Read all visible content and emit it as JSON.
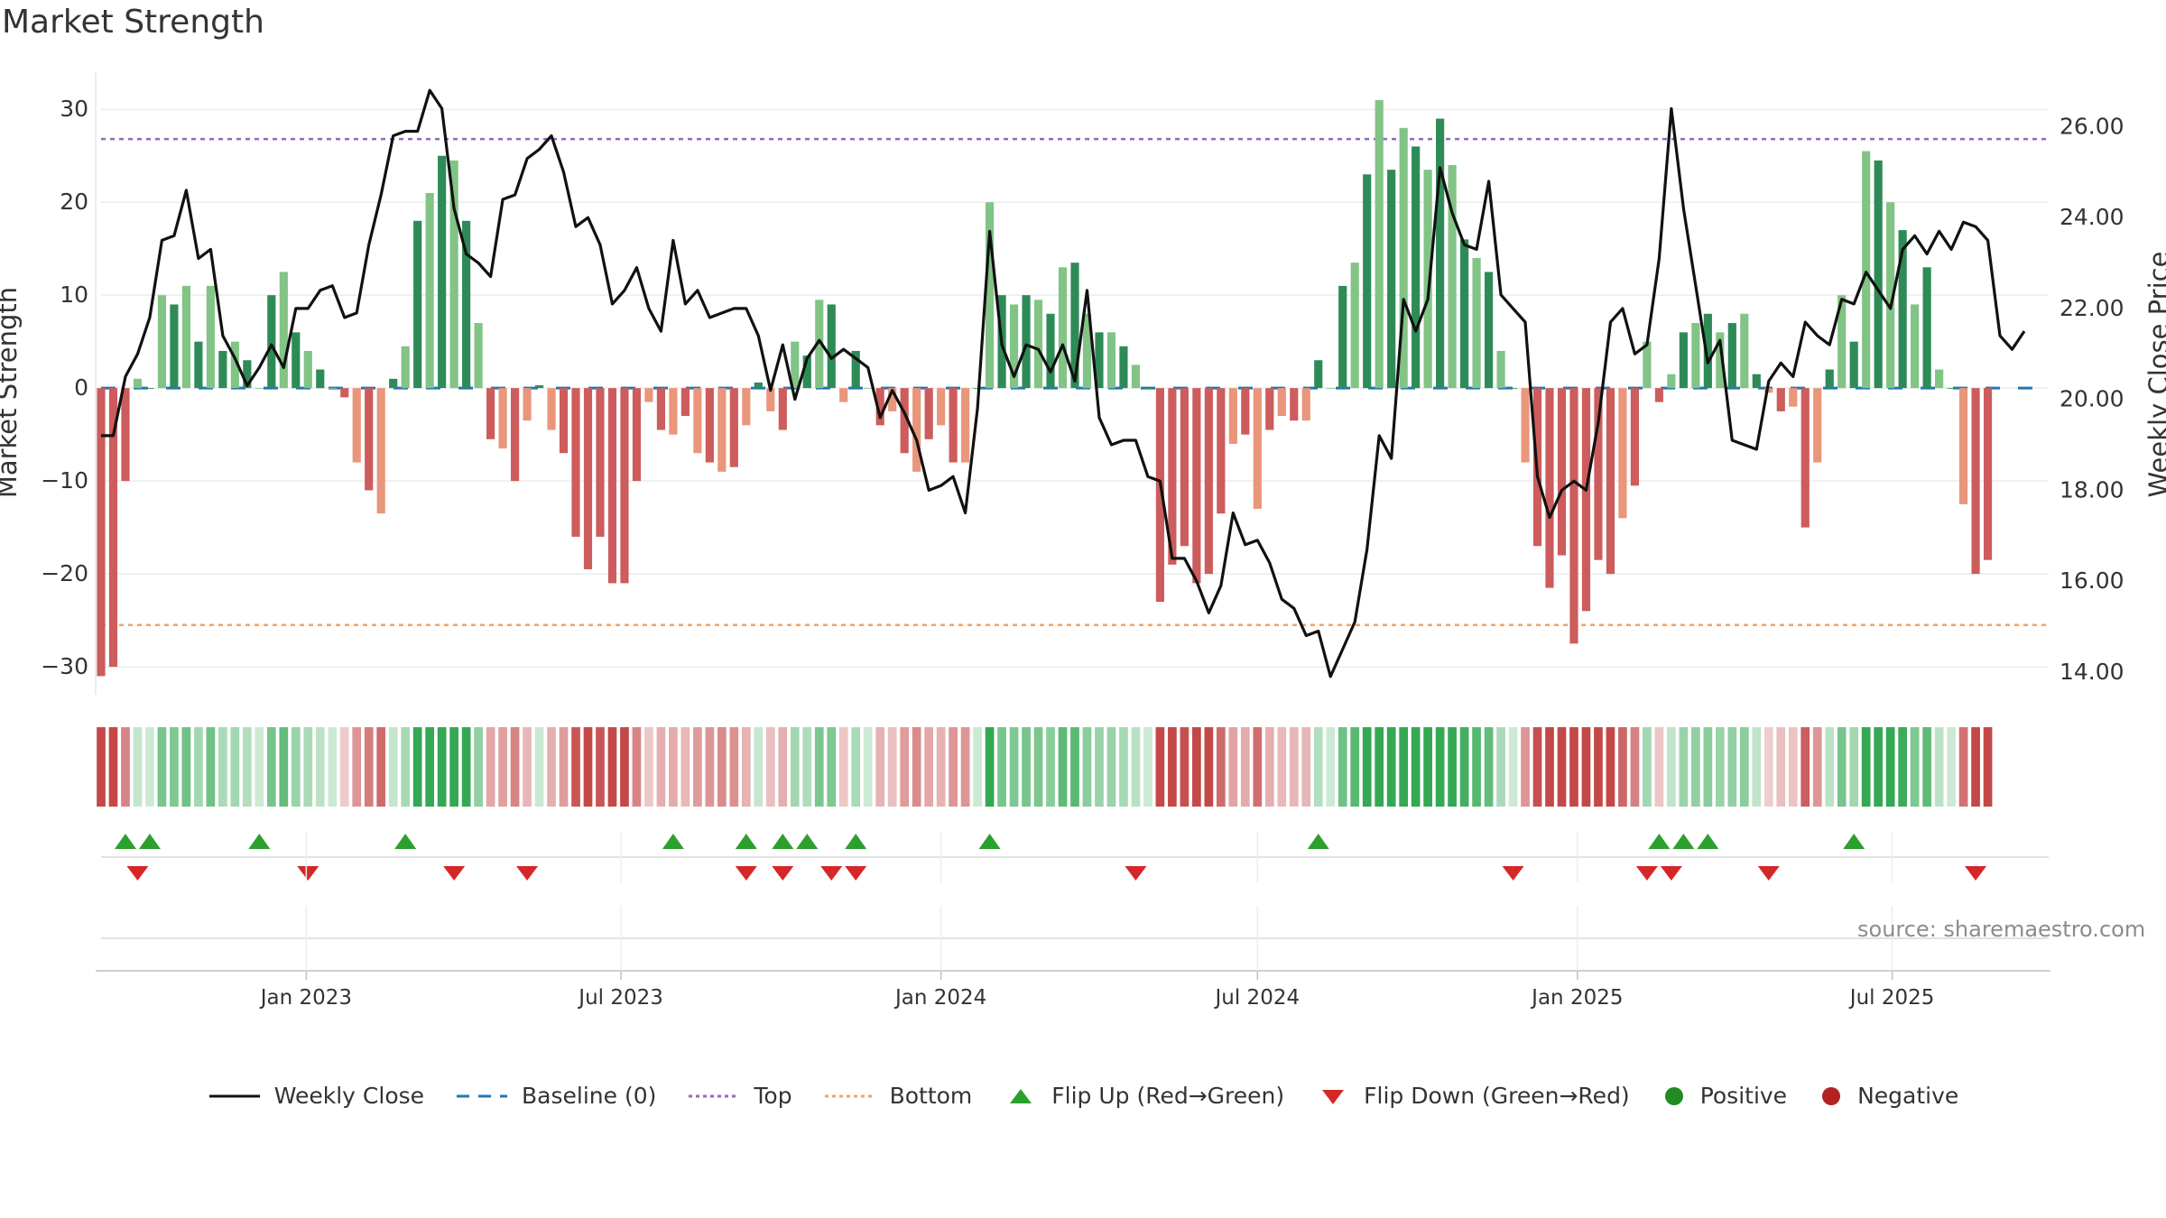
{
  "chart_data": {
    "type": "bar",
    "title": "Market Strength",
    "ylabel": "Market Strength",
    "y2label": "Weekly Close Price",
    "ylim": [
      -33,
      34
    ],
    "y2lim": [
      13.5,
      27.2
    ],
    "yticks": [
      -30,
      -20,
      -10,
      0,
      10,
      20,
      30
    ],
    "y2ticks": [
      "14.00",
      "16.00",
      "18.00",
      "20.00",
      "22.00",
      "24.00",
      "26.00"
    ],
    "top_line": 26.8,
    "bottom_line": -25.5,
    "xlim": [
      "2022-09-05",
      "2025-09-29"
    ],
    "xticks": [
      {
        "date": "2023-01-01",
        "label": "Jan 2023"
      },
      {
        "date": "2023-07-01",
        "label": "Jul 2023"
      },
      {
        "date": "2024-01-01",
        "label": "Jan 2024"
      },
      {
        "date": "2024-07-01",
        "label": "Jul 2024"
      },
      {
        "date": "2025-01-01",
        "label": "Jan 2025"
      },
      {
        "date": "2025-07-01",
        "label": "Jul 2025"
      }
    ],
    "start_date": "2022-09-05",
    "week_step_days": 7,
    "strength": [
      -31,
      -30,
      -10,
      1,
      0,
      10,
      9,
      11,
      5,
      11,
      4,
      5,
      3,
      0,
      10,
      12.5,
      6,
      4,
      2,
      0,
      -1,
      -8,
      -11,
      -13.5,
      1,
      4.5,
      18,
      21,
      25,
      24.5,
      18,
      7,
      -5.5,
      -6.5,
      -10,
      -3.5,
      0.3,
      -4.5,
      -7,
      -16,
      -19.5,
      -16,
      -21,
      -21,
      -10,
      -1.5,
      -4.5,
      -5,
      -3,
      -7,
      -8,
      -9,
      -8.5,
      -4,
      0.6,
      -2.5,
      -4.5,
      5,
      3.5,
      9.5,
      9,
      -1.5,
      4,
      0,
      -4,
      -2.5,
      -7,
      -9,
      -5.5,
      -4,
      -8,
      -8,
      0,
      20,
      10,
      9,
      10,
      9.5,
      8,
      13,
      13.5,
      8,
      6,
      6,
      4.5,
      2.5,
      0,
      -23,
      -19,
      -17,
      -21,
      -20,
      -13.5,
      -6,
      -5,
      -13,
      -4.5,
      -3,
      -3.5,
      -3.5,
      3,
      0,
      11,
      13.5,
      23,
      31,
      23.5,
      28,
      26,
      23.5,
      29,
      24,
      16,
      14,
      12.5,
      4,
      0,
      -8,
      -17,
      -21.5,
      -18,
      -27.5,
      -24,
      -18.5,
      -20,
      -14,
      -10.5,
      5,
      -1.5,
      1.5,
      6,
      7,
      8,
      6,
      7,
      8,
      1.5,
      -0.5,
      -2.5,
      -2,
      -15,
      -8,
      2,
      10,
      5,
      25.5,
      24.5,
      20,
      17,
      9,
      13,
      2,
      0,
      -12.5,
      -20,
      -18.5
    ],
    "close": [
      19.2,
      19.2,
      20.5,
      21,
      21.8,
      23.5,
      23.6,
      24.6,
      23.1,
      23.3,
      21.4,
      20.9,
      20.3,
      20.7,
      21.2,
      20.7,
      22,
      22,
      22.4,
      22.5,
      21.8,
      21.9,
      23.4,
      24.5,
      25.8,
      25.9,
      25.9,
      26.8,
      26.4,
      24.2,
      23.2,
      23,
      22.7,
      24.4,
      24.5,
      25.3,
      25.5,
      25.8,
      25,
      23.8,
      24,
      23.4,
      22.1,
      22.4,
      22.9,
      22,
      21.5,
      23.5,
      22.1,
      22.4,
      21.8,
      21.9,
      22,
      22,
      21.4,
      20.2,
      21.2,
      20,
      20.9,
      21.3,
      20.9,
      21.1,
      20.9,
      20.7,
      19.6,
      20.2,
      19.7,
      19.1,
      18,
      18.1,
      18.3,
      17.5,
      19.8,
      23.7,
      21.2,
      20.5,
      21.2,
      21.1,
      20.6,
      21.2,
      20.4,
      22.4,
      19.6,
      19,
      19.1,
      19.1,
      18.3,
      18.2,
      16.5,
      16.5,
      16,
      15.3,
      15.9,
      17.5,
      16.8,
      16.9,
      16.4,
      15.6,
      15.4,
      14.8,
      14.9,
      13.9,
      14.5,
      15.1,
      16.7,
      19.2,
      18.7,
      22.2,
      21.5,
      22.2,
      25.1,
      24.1,
      23.4,
      23.3,
      24.8,
      22.3,
      22,
      21.7,
      18.3,
      17.4,
      18,
      18.2,
      18,
      19.5,
      21.7,
      22,
      21,
      21.2,
      23.1,
      26.4,
      24.2,
      22.5,
      20.8,
      21.3,
      19.1,
      19,
      18.9,
      20.4,
      20.8,
      20.5,
      21.7,
      21.4,
      21.2,
      22.2,
      22.1,
      22.8,
      22.4,
      22,
      23.3,
      23.6,
      23.2,
      23.7,
      23.3,
      23.9,
      23.8,
      23.5,
      21.4,
      21.1,
      21.5
    ],
    "flip_up_weeks": [
      2,
      4,
      13,
      25,
      47,
      53,
      56,
      58,
      62,
      73,
      100,
      128,
      130,
      132,
      144
    ],
    "flip_down_weeks": [
      3,
      17,
      29,
      35,
      53,
      56,
      60,
      62,
      85,
      116,
      127,
      129,
      137,
      154
    ]
  },
  "legend": [
    {
      "key": "close",
      "label": "Weekly Close"
    },
    {
      "key": "baseline",
      "label": "Baseline (0)"
    },
    {
      "key": "top",
      "label": "Top"
    },
    {
      "key": "bottom",
      "label": "Bottom"
    },
    {
      "key": "flip-up",
      "label": "Flip Up (Red→Green)"
    },
    {
      "key": "flip-down",
      "label": "Flip Down (Green→Red)"
    },
    {
      "key": "positive",
      "label": "Positive"
    },
    {
      "key": "negative",
      "label": "Negative"
    }
  ],
  "source": "source: sharemaestro.com",
  "colors": {
    "pos_strong": "#2e8b57",
    "pos_light": "#82c386",
    "neg_strong": "#cd5c5c",
    "neg_light": "#e9967a",
    "close_line": "#111111",
    "baseline": "#1f77b4",
    "top": "#9467bd",
    "bottom": "#f4a261",
    "flip_up": "#2ca02c",
    "flip_down": "#d62728",
    "positive_dot": "#228b22",
    "negative_dot": "#b22222"
  }
}
